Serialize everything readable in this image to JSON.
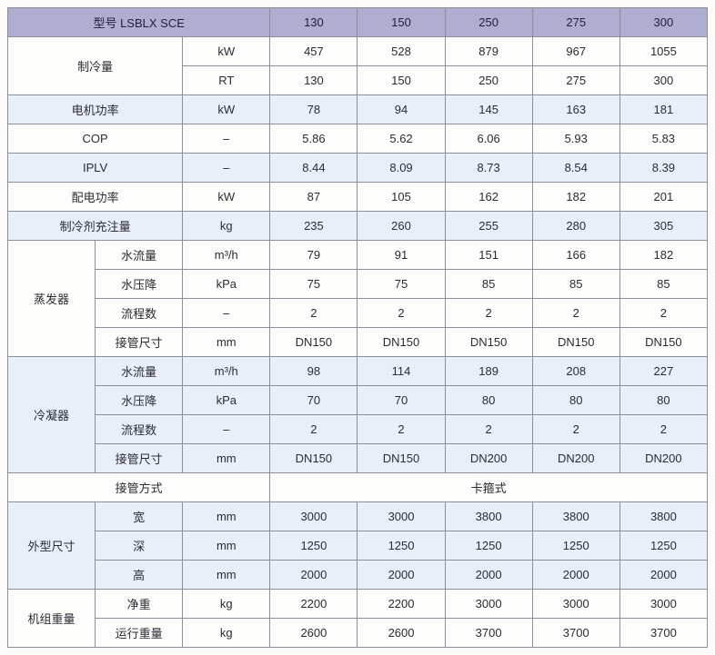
{
  "header": {
    "model_label": "型号 LSBLX  SCE",
    "models": [
      "130",
      "150",
      "250",
      "275",
      "300"
    ]
  },
  "rows": {
    "cooling": {
      "label": "制冷量",
      "kw": {
        "unit": "kW",
        "values": [
          "457",
          "528",
          "879",
          "967",
          "1055"
        ]
      },
      "rt": {
        "unit": "RT",
        "values": [
          "130",
          "150",
          "250",
          "275",
          "300"
        ]
      }
    },
    "motor": {
      "label": "电机功率",
      "unit": "kW",
      "values": [
        "78",
        "94",
        "145",
        "163",
        "181"
      ]
    },
    "cop": {
      "label": "COP",
      "unit": "–",
      "values": [
        "5.86",
        "5.62",
        "6.06",
        "5.93",
        "5.83"
      ]
    },
    "iplv": {
      "label": "IPLV",
      "unit": "–",
      "values": [
        "8.44",
        "8.09",
        "8.73",
        "8.54",
        "8.39"
      ]
    },
    "power": {
      "label": "配电功率",
      "unit": "kW",
      "values": [
        "87",
        "105",
        "162",
        "182",
        "201"
      ]
    },
    "refrig": {
      "label": "制冷剂充注量",
      "unit": "kg",
      "values": [
        "235",
        "260",
        "255",
        "280",
        "305"
      ]
    },
    "evap": {
      "label": "蒸发器",
      "flow": {
        "label": "水流量",
        "unit": "m³/h",
        "values": [
          "79",
          "91",
          "151",
          "166",
          "182"
        ]
      },
      "drop": {
        "label": "水压降",
        "unit": "kPa",
        "values": [
          "75",
          "75",
          "85",
          "85",
          "85"
        ]
      },
      "pass": {
        "label": "流程数",
        "unit": "–",
        "values": [
          "2",
          "2",
          "2",
          "2",
          "2"
        ]
      },
      "pipe": {
        "label": "接管尺寸",
        "unit": "mm",
        "values": [
          "DN150",
          "DN150",
          "DN150",
          "DN150",
          "DN150"
        ]
      }
    },
    "cond": {
      "label": "冷凝器",
      "flow": {
        "label": "水流量",
        "unit": "m³/h",
        "values": [
          "98",
          "114",
          "189",
          "208",
          "227"
        ]
      },
      "drop": {
        "label": "水压降",
        "unit": "kPa",
        "values": [
          "70",
          "70",
          "80",
          "80",
          "80"
        ]
      },
      "pass": {
        "label": "流程数",
        "unit": "–",
        "values": [
          "2",
          "2",
          "2",
          "2",
          "2"
        ]
      },
      "pipe": {
        "label": "接管尺寸",
        "unit": "mm",
        "values": [
          "DN150",
          "DN150",
          "DN200",
          "DN200",
          "DN200"
        ]
      }
    },
    "conn": {
      "label": "接管方式",
      "value": "卡箍式"
    },
    "dims": {
      "label": "外型尺寸",
      "w": {
        "label": "宽",
        "unit": "mm",
        "values": [
          "3000",
          "3000",
          "3800",
          "3800",
          "3800"
        ]
      },
      "d": {
        "label": "深",
        "unit": "mm",
        "values": [
          "1250",
          "1250",
          "1250",
          "1250",
          "1250"
        ]
      },
      "h": {
        "label": "高",
        "unit": "mm",
        "values": [
          "2000",
          "2000",
          "2000",
          "2000",
          "2000"
        ]
      }
    },
    "weight": {
      "label": "机组重量",
      "net": {
        "label": "净重",
        "unit": "kg",
        "values": [
          "2200",
          "2200",
          "3000",
          "3000",
          "3000"
        ]
      },
      "run": {
        "label": "运行重量",
        "unit": "kg",
        "values": [
          "2600",
          "2600",
          "3700",
          "3700",
          "3700"
        ]
      }
    }
  }
}
